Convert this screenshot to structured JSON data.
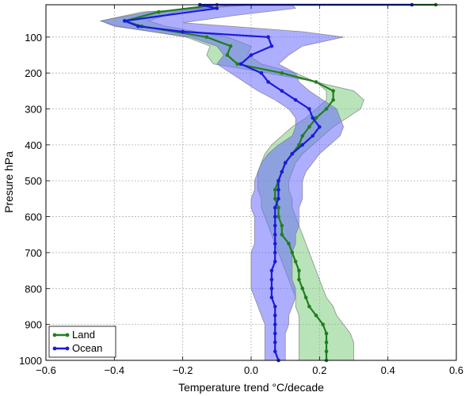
{
  "chart_data": {
    "type": "line",
    "xlabel": "Temperature trend °C/decade",
    "ylabel": "Presure hPa",
    "xlim": [
      -0.6,
      0.6
    ],
    "ylim": [
      1000,
      10
    ],
    "y_inverted": true,
    "grid": true,
    "legend_position": "bottom-left",
    "xticks": [
      "−0.6",
      "−0.4",
      "−0.2",
      "0.0",
      "0.2",
      "0.4",
      "0.6"
    ],
    "yticks": [
      "100",
      "200",
      "300",
      "400",
      "500",
      "600",
      "700",
      "800",
      "900",
      "1000"
    ],
    "series": [
      {
        "name": "Land",
        "color": "#1f7f1f",
        "band_color": "#7fcc7f",
        "points": [
          [
            0.54,
            10
          ],
          [
            -0.1,
            10
          ],
          [
            -0.27,
            30
          ],
          [
            -0.37,
            55
          ],
          [
            -0.32,
            70
          ],
          [
            -0.13,
            100
          ],
          [
            -0.06,
            125
          ],
          [
            -0.07,
            150
          ],
          [
            -0.04,
            175
          ],
          [
            0.09,
            200
          ],
          [
            0.19,
            225
          ],
          [
            0.24,
            250
          ],
          [
            0.24,
            275
          ],
          [
            0.22,
            300
          ],
          [
            0.19,
            325
          ],
          [
            0.17,
            350
          ],
          [
            0.15,
            375
          ],
          [
            0.14,
            400
          ],
          [
            0.12,
            425
          ],
          [
            0.1,
            450
          ],
          [
            0.09,
            475
          ],
          [
            0.08,
            500
          ],
          [
            0.07,
            525
          ],
          [
            0.07,
            550
          ],
          [
            0.08,
            575
          ],
          [
            0.08,
            600
          ],
          [
            0.09,
            625
          ],
          [
            0.09,
            650
          ],
          [
            0.11,
            675
          ],
          [
            0.12,
            700
          ],
          [
            0.13,
            725
          ],
          [
            0.14,
            750
          ],
          [
            0.14,
            775
          ],
          [
            0.15,
            800
          ],
          [
            0.16,
            825
          ],
          [
            0.17,
            850
          ],
          [
            0.19,
            875
          ],
          [
            0.21,
            900
          ],
          [
            0.22,
            925
          ],
          [
            0.22,
            950
          ],
          [
            0.22,
            975
          ],
          [
            0.22,
            1000
          ]
        ],
        "lower": [
          [
            -0.05,
            10
          ],
          [
            -0.22,
            30
          ],
          [
            -0.3,
            55
          ],
          [
            -0.25,
            70
          ],
          [
            -0.07,
            100
          ],
          [
            0.0,
            125
          ],
          [
            -0.01,
            150
          ],
          [
            0.03,
            175
          ],
          [
            0.13,
            200
          ],
          [
            0.19,
            225
          ],
          [
            0.22,
            250
          ],
          [
            0.22,
            275
          ],
          [
            0.19,
            300
          ],
          [
            0.16,
            325
          ],
          [
            0.12,
            350
          ],
          [
            0.09,
            375
          ],
          [
            0.06,
            400
          ],
          [
            0.04,
            425
          ],
          [
            0.03,
            450
          ],
          [
            0.02,
            475
          ],
          [
            0.02,
            500
          ],
          [
            0.02,
            525
          ],
          [
            0.03,
            550
          ],
          [
            0.03,
            575
          ],
          [
            0.04,
            600
          ],
          [
            0.05,
            625
          ],
          [
            0.06,
            650
          ],
          [
            0.07,
            675
          ],
          [
            0.08,
            700
          ],
          [
            0.09,
            725
          ],
          [
            0.1,
            750
          ],
          [
            0.11,
            775
          ],
          [
            0.12,
            800
          ],
          [
            0.13,
            825
          ],
          [
            0.13,
            850
          ],
          [
            0.14,
            875
          ],
          [
            0.14,
            900
          ],
          [
            0.14,
            925
          ],
          [
            0.14,
            950
          ],
          [
            0.14,
            975
          ],
          [
            0.14,
            1000
          ]
        ],
        "upper": [
          [
            0.02,
            10
          ],
          [
            -0.32,
            30
          ],
          [
            -0.44,
            55
          ],
          [
            -0.39,
            70
          ],
          [
            -0.19,
            100
          ],
          [
            -0.12,
            125
          ],
          [
            -0.13,
            150
          ],
          [
            -0.11,
            175
          ],
          [
            0.05,
            200
          ],
          [
            0.19,
            225
          ],
          [
            0.3,
            250
          ],
          [
            0.33,
            275
          ],
          [
            0.32,
            300
          ],
          [
            0.28,
            325
          ],
          [
            0.24,
            350
          ],
          [
            0.21,
            375
          ],
          [
            0.18,
            400
          ],
          [
            0.15,
            425
          ],
          [
            0.13,
            450
          ],
          [
            0.12,
            475
          ],
          [
            0.11,
            500
          ],
          [
            0.11,
            525
          ],
          [
            0.12,
            550
          ],
          [
            0.12,
            575
          ],
          [
            0.13,
            600
          ],
          [
            0.14,
            625
          ],
          [
            0.15,
            650
          ],
          [
            0.16,
            675
          ],
          [
            0.17,
            700
          ],
          [
            0.18,
            725
          ],
          [
            0.19,
            750
          ],
          [
            0.2,
            775
          ],
          [
            0.21,
            800
          ],
          [
            0.22,
            825
          ],
          [
            0.24,
            850
          ],
          [
            0.25,
            875
          ],
          [
            0.27,
            900
          ],
          [
            0.29,
            925
          ],
          [
            0.3,
            950
          ],
          [
            0.3,
            975
          ],
          [
            0.3,
            1000
          ]
        ]
      },
      {
        "name": "Ocean",
        "color": "#1a1adb",
        "band_color": "#6b6bff",
        "points": [
          [
            0.47,
            10
          ],
          [
            -0.15,
            10
          ],
          [
            -0.1,
            20
          ],
          [
            -0.37,
            55
          ],
          [
            -0.33,
            70
          ],
          [
            -0.2,
            85
          ],
          [
            0.05,
            100
          ],
          [
            0.06,
            125
          ],
          [
            0.0,
            150
          ],
          [
            -0.03,
            175
          ],
          [
            0.03,
            200
          ],
          [
            0.05,
            225
          ],
          [
            0.09,
            250
          ],
          [
            0.13,
            275
          ],
          [
            0.17,
            300
          ],
          [
            0.18,
            325
          ],
          [
            0.2,
            350
          ],
          [
            0.18,
            375
          ],
          [
            0.15,
            400
          ],
          [
            0.12,
            425
          ],
          [
            0.1,
            450
          ],
          [
            0.09,
            475
          ],
          [
            0.08,
            500
          ],
          [
            0.08,
            525
          ],
          [
            0.08,
            550
          ],
          [
            0.07,
            575
          ],
          [
            0.07,
            600
          ],
          [
            0.07,
            625
          ],
          [
            0.07,
            650
          ],
          [
            0.07,
            675
          ],
          [
            0.07,
            700
          ],
          [
            0.07,
            725
          ],
          [
            0.06,
            750
          ],
          [
            0.06,
            775
          ],
          [
            0.06,
            800
          ],
          [
            0.06,
            825
          ],
          [
            0.07,
            850
          ],
          [
            0.07,
            875
          ],
          [
            0.07,
            900
          ],
          [
            0.07,
            925
          ],
          [
            0.07,
            950
          ],
          [
            0.07,
            975
          ],
          [
            0.08,
            1000
          ]
        ],
        "lower": [
          [
            -0.03,
            10
          ],
          [
            -0.3,
            30
          ],
          [
            -0.44,
            55
          ],
          [
            -0.4,
            70
          ],
          [
            -0.18,
            100
          ],
          [
            -0.1,
            125
          ],
          [
            -0.08,
            150
          ],
          [
            -0.1,
            175
          ],
          [
            -0.06,
            200
          ],
          [
            -0.02,
            225
          ],
          [
            0.02,
            250
          ],
          [
            0.07,
            275
          ],
          [
            0.11,
            300
          ],
          [
            0.13,
            325
          ],
          [
            0.13,
            350
          ],
          [
            0.12,
            375
          ],
          [
            0.08,
            400
          ],
          [
            0.05,
            425
          ],
          [
            0.03,
            450
          ],
          [
            0.02,
            475
          ],
          [
            0.01,
            500
          ],
          [
            0.01,
            525
          ],
          [
            0.0,
            550
          ],
          [
            0.0,
            575
          ],
          [
            0.01,
            600
          ],
          [
            0.01,
            625
          ],
          [
            0.01,
            650
          ],
          [
            0.01,
            675
          ],
          [
            0.0,
            700
          ],
          [
            0.0,
            725
          ],
          [
            0.0,
            750
          ],
          [
            0.0,
            775
          ],
          [
            0.0,
            800
          ],
          [
            0.01,
            825
          ],
          [
            0.02,
            850
          ],
          [
            0.03,
            875
          ],
          [
            0.04,
            900
          ],
          [
            0.04,
            925
          ],
          [
            0.04,
            950
          ],
          [
            0.04,
            975
          ],
          [
            0.04,
            1000
          ]
        ],
        "upper": [
          [
            0.12,
            10
          ],
          [
            0.13,
            20
          ],
          [
            -0.05,
            40
          ],
          [
            -0.2,
            60
          ],
          [
            0.15,
            85
          ],
          [
            0.27,
            100
          ],
          [
            0.15,
            125
          ],
          [
            0.11,
            150
          ],
          [
            0.08,
            175
          ],
          [
            0.13,
            200
          ],
          [
            0.14,
            225
          ],
          [
            0.17,
            250
          ],
          [
            0.21,
            275
          ],
          [
            0.25,
            300
          ],
          [
            0.26,
            325
          ],
          [
            0.27,
            350
          ],
          [
            0.26,
            375
          ],
          [
            0.23,
            400
          ],
          [
            0.2,
            425
          ],
          [
            0.18,
            450
          ],
          [
            0.16,
            475
          ],
          [
            0.15,
            500
          ],
          [
            0.15,
            525
          ],
          [
            0.15,
            550
          ],
          [
            0.14,
            575
          ],
          [
            0.14,
            600
          ],
          [
            0.14,
            625
          ],
          [
            0.13,
            650
          ],
          [
            0.13,
            675
          ],
          [
            0.12,
            700
          ],
          [
            0.12,
            725
          ],
          [
            0.12,
            750
          ],
          [
            0.12,
            775
          ],
          [
            0.13,
            800
          ],
          [
            0.13,
            825
          ],
          [
            0.12,
            850
          ],
          [
            0.11,
            875
          ],
          [
            0.11,
            900
          ],
          [
            0.1,
            925
          ],
          [
            0.1,
            950
          ],
          [
            0.1,
            975
          ],
          [
            0.1,
            1000
          ]
        ]
      }
    ]
  }
}
